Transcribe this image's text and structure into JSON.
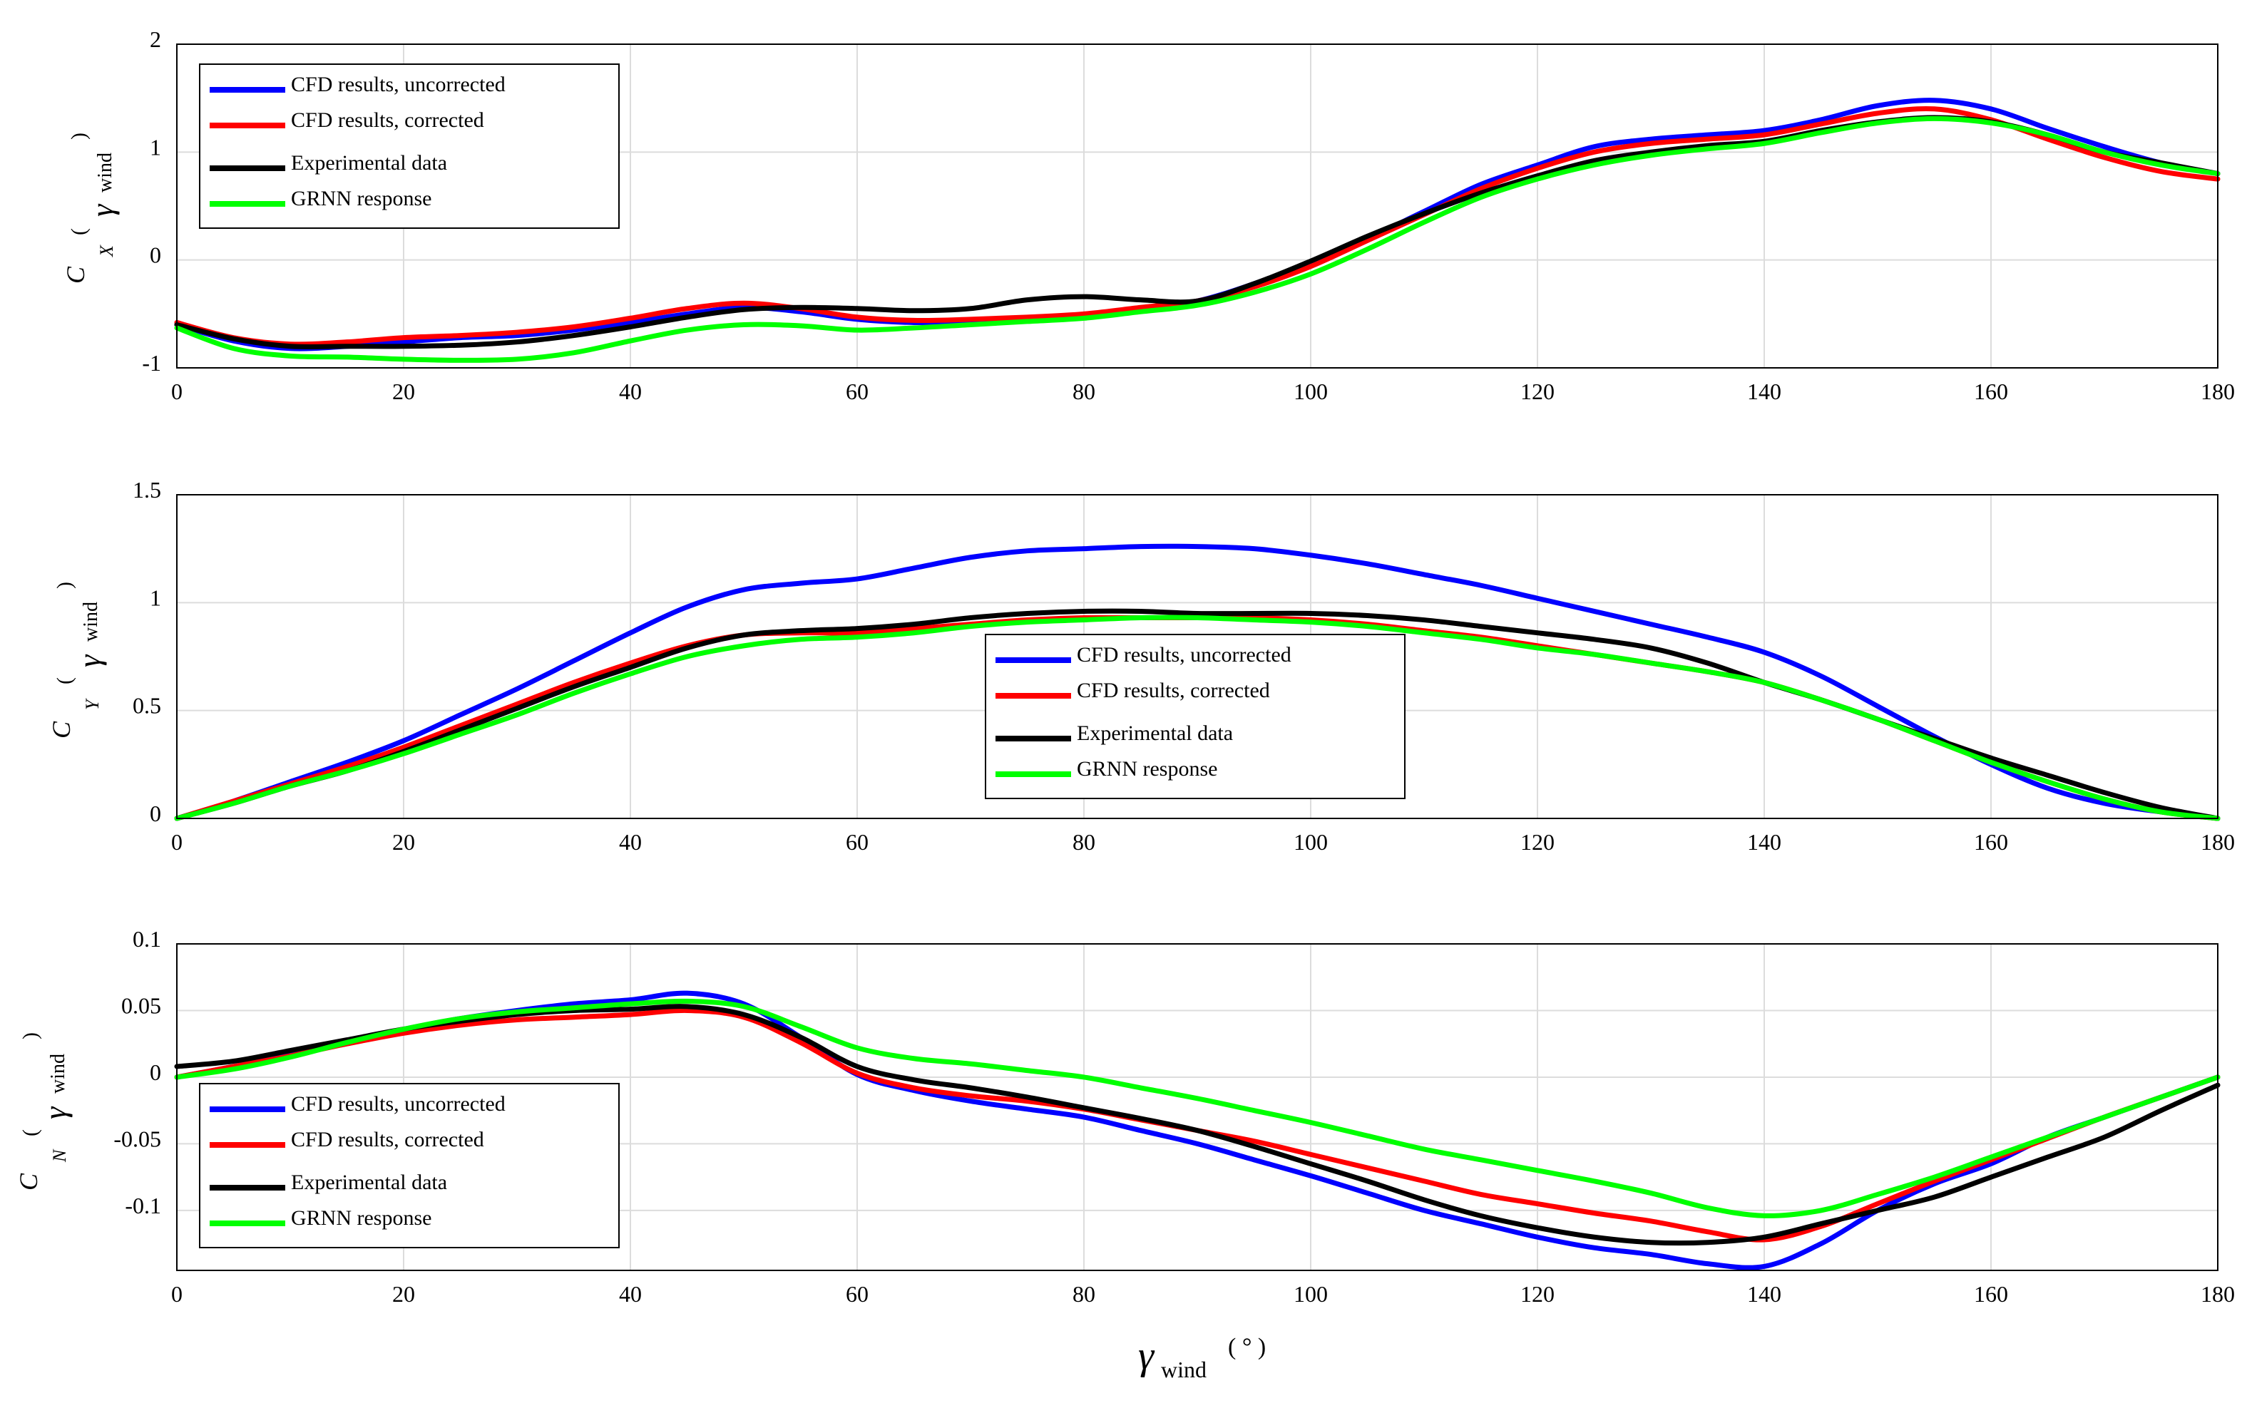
{
  "chart_data": [
    {
      "type": "line",
      "ylabel_main": "C",
      "ylabel_sub": "X",
      "ylim": [
        -1,
        2
      ],
      "yticks": [
        "-1",
        "0",
        "1",
        "2"
      ],
      "xlim": [
        0,
        180
      ],
      "xticks": [
        "0",
        "20",
        "40",
        "60",
        "80",
        "100",
        "120",
        "140",
        "160",
        "180"
      ],
      "grid": true,
      "legend_position": "top-left",
      "series": [
        {
          "name": "CFD results, uncorrected",
          "color": "#0000ff",
          "x": [
            0,
            5,
            10,
            15,
            20,
            25,
            30,
            35,
            40,
            45,
            50,
            55,
            60,
            65,
            70,
            75,
            80,
            85,
            90,
            95,
            100,
            105,
            110,
            115,
            120,
            125,
            130,
            135,
            140,
            145,
            150,
            155,
            160,
            165,
            170,
            175,
            180
          ],
          "y": [
            -0.6,
            -0.75,
            -0.82,
            -0.8,
            -0.76,
            -0.72,
            -0.7,
            -0.65,
            -0.58,
            -0.5,
            -0.44,
            -0.48,
            -0.55,
            -0.58,
            -0.57,
            -0.55,
            -0.52,
            -0.45,
            -0.38,
            -0.22,
            -0.02,
            0.2,
            0.45,
            0.7,
            0.88,
            1.05,
            1.12,
            1.16,
            1.2,
            1.3,
            1.43,
            1.48,
            1.4,
            1.22,
            1.05,
            0.9,
            0.8
          ]
        },
        {
          "name": "CFD results, corrected",
          "color": "#ff0000",
          "x": [
            0,
            5,
            10,
            15,
            20,
            25,
            30,
            35,
            40,
            45,
            50,
            55,
            60,
            65,
            70,
            75,
            80,
            85,
            90,
            95,
            100,
            105,
            110,
            115,
            120,
            125,
            130,
            135,
            140,
            145,
            150,
            155,
            160,
            165,
            170,
            175,
            180
          ],
          "y": [
            -0.58,
            -0.72,
            -0.78,
            -0.76,
            -0.72,
            -0.7,
            -0.67,
            -0.62,
            -0.54,
            -0.45,
            -0.4,
            -0.45,
            -0.53,
            -0.56,
            -0.55,
            -0.53,
            -0.5,
            -0.44,
            -0.38,
            -0.25,
            -0.06,
            0.18,
            0.42,
            0.66,
            0.85,
            1.0,
            1.08,
            1.12,
            1.16,
            1.26,
            1.36,
            1.4,
            1.3,
            1.12,
            0.95,
            0.82,
            0.75
          ]
        },
        {
          "name": "Experimental data",
          "color": "#000000",
          "x": [
            0,
            5,
            10,
            15,
            20,
            25,
            30,
            35,
            40,
            45,
            50,
            55,
            60,
            65,
            70,
            75,
            80,
            85,
            90,
            95,
            100,
            105,
            110,
            115,
            120,
            125,
            130,
            135,
            140,
            145,
            150,
            155,
            160,
            165,
            170,
            175,
            180
          ],
          "y": [
            -0.6,
            -0.73,
            -0.8,
            -0.8,
            -0.8,
            -0.79,
            -0.76,
            -0.7,
            -0.62,
            -0.53,
            -0.46,
            -0.44,
            -0.45,
            -0.47,
            -0.45,
            -0.37,
            -0.34,
            -0.37,
            -0.38,
            -0.22,
            -0.01,
            0.22,
            0.43,
            0.62,
            0.78,
            0.92,
            1.0,
            1.06,
            1.1,
            1.2,
            1.28,
            1.32,
            1.28,
            1.16,
            1.0,
            0.9,
            0.8
          ]
        },
        {
          "name": "GRNN response",
          "color": "#00ff00",
          "x": [
            0,
            5,
            10,
            15,
            20,
            25,
            30,
            35,
            40,
            45,
            50,
            55,
            60,
            65,
            70,
            75,
            80,
            85,
            90,
            95,
            100,
            105,
            110,
            115,
            120,
            125,
            130,
            135,
            140,
            145,
            150,
            155,
            160,
            165,
            170,
            175,
            180
          ],
          "y": [
            -0.63,
            -0.82,
            -0.89,
            -0.9,
            -0.92,
            -0.93,
            -0.92,
            -0.86,
            -0.75,
            -0.65,
            -0.6,
            -0.61,
            -0.65,
            -0.63,
            -0.6,
            -0.57,
            -0.54,
            -0.48,
            -0.42,
            -0.3,
            -0.13,
            0.1,
            0.35,
            0.58,
            0.75,
            0.88,
            0.97,
            1.03,
            1.08,
            1.18,
            1.27,
            1.31,
            1.27,
            1.16,
            1.0,
            0.88,
            0.8
          ]
        }
      ]
    },
    {
      "type": "line",
      "ylabel_main": "C",
      "ylabel_sub": "Y",
      "ylim": [
        0,
        1.5
      ],
      "yticks": [
        "0",
        "0.5",
        "1",
        "1.5"
      ],
      "xlim": [
        0,
        180
      ],
      "xticks": [
        "0",
        "20",
        "40",
        "60",
        "80",
        "100",
        "120",
        "140",
        "160",
        "180"
      ],
      "grid": true,
      "legend_position": "center-right",
      "series": [
        {
          "name": "CFD results, uncorrected",
          "color": "#0000ff",
          "x": [
            0,
            5,
            10,
            15,
            20,
            25,
            30,
            35,
            40,
            45,
            50,
            55,
            60,
            65,
            70,
            75,
            80,
            85,
            90,
            95,
            100,
            105,
            110,
            115,
            120,
            125,
            130,
            135,
            140,
            145,
            150,
            155,
            160,
            165,
            170,
            175,
            180
          ],
          "y": [
            0,
            0.08,
            0.17,
            0.26,
            0.36,
            0.48,
            0.6,
            0.73,
            0.86,
            0.98,
            1.06,
            1.09,
            1.11,
            1.16,
            1.21,
            1.24,
            1.25,
            1.26,
            1.26,
            1.25,
            1.22,
            1.18,
            1.13,
            1.08,
            1.02,
            0.96,
            0.9,
            0.84,
            0.77,
            0.66,
            0.52,
            0.38,
            0.25,
            0.14,
            0.07,
            0.03,
            0
          ]
        },
        {
          "name": "CFD results, corrected",
          "color": "#ff0000",
          "x": [
            0,
            5,
            10,
            15,
            20,
            25,
            30,
            35,
            40,
            45,
            50,
            55,
            60,
            65,
            70,
            75,
            80,
            85,
            90,
            95,
            100,
            105,
            110,
            115,
            120,
            125,
            130,
            135,
            140,
            145,
            150,
            155,
            160,
            165,
            170,
            175,
            180
          ],
          "y": [
            0,
            0.08,
            0.16,
            0.24,
            0.33,
            0.43,
            0.53,
            0.63,
            0.72,
            0.8,
            0.85,
            0.86,
            0.86,
            0.88,
            0.9,
            0.92,
            0.93,
            0.93,
            0.93,
            0.93,
            0.92,
            0.9,
            0.87,
            0.84,
            0.8,
            0.76,
            0.72,
            0.68,
            0.63,
            0.55,
            0.46,
            0.36,
            0.26,
            0.17,
            0.09,
            0.03,
            0
          ]
        },
        {
          "name": "Experimental data",
          "color": "#000000",
          "x": [
            0,
            5,
            10,
            15,
            20,
            25,
            30,
            35,
            40,
            45,
            50,
            55,
            60,
            65,
            70,
            75,
            80,
            85,
            90,
            95,
            100,
            105,
            110,
            115,
            120,
            125,
            130,
            135,
            140,
            145,
            150,
            155,
            160,
            165,
            170,
            175,
            180
          ],
          "y": [
            0,
            0.07,
            0.15,
            0.22,
            0.31,
            0.41,
            0.51,
            0.61,
            0.7,
            0.79,
            0.85,
            0.87,
            0.88,
            0.9,
            0.93,
            0.95,
            0.96,
            0.96,
            0.95,
            0.95,
            0.95,
            0.94,
            0.92,
            0.89,
            0.86,
            0.83,
            0.79,
            0.72,
            0.63,
            0.55,
            0.46,
            0.37,
            0.28,
            0.2,
            0.12,
            0.05,
            0
          ]
        },
        {
          "name": "GRNN response",
          "color": "#00ff00",
          "x": [
            0,
            5,
            10,
            15,
            20,
            25,
            30,
            35,
            40,
            45,
            50,
            55,
            60,
            65,
            70,
            75,
            80,
            85,
            90,
            95,
            100,
            105,
            110,
            115,
            120,
            125,
            130,
            135,
            140,
            145,
            150,
            155,
            160,
            165,
            170,
            175,
            180
          ],
          "y": [
            0,
            0.07,
            0.15,
            0.22,
            0.3,
            0.39,
            0.48,
            0.58,
            0.67,
            0.75,
            0.8,
            0.83,
            0.84,
            0.86,
            0.89,
            0.91,
            0.92,
            0.93,
            0.93,
            0.92,
            0.91,
            0.89,
            0.86,
            0.83,
            0.79,
            0.76,
            0.72,
            0.68,
            0.63,
            0.55,
            0.46,
            0.36,
            0.26,
            0.17,
            0.09,
            0.03,
            0
          ]
        }
      ]
    },
    {
      "type": "line",
      "ylabel_main": "C",
      "ylabel_sub": "N",
      "ylim": [
        -0.145,
        0.1
      ],
      "yticks": [
        "-0.1",
        "-0.05",
        "0",
        "0.05",
        "0.1"
      ],
      "ytick_values": [
        -0.1,
        -0.05,
        0,
        0.05,
        0.1
      ],
      "xlim": [
        0,
        180
      ],
      "xticks": [
        "0",
        "20",
        "40",
        "60",
        "80",
        "100",
        "120",
        "140",
        "160",
        "180"
      ],
      "grid": true,
      "legend_position": "bottom-left",
      "series": [
        {
          "name": "CFD results, uncorrected",
          "color": "#0000ff",
          "x": [
            0,
            5,
            10,
            15,
            20,
            25,
            30,
            35,
            40,
            45,
            50,
            55,
            60,
            65,
            70,
            75,
            80,
            85,
            90,
            95,
            100,
            105,
            110,
            115,
            120,
            125,
            130,
            135,
            140,
            145,
            150,
            155,
            160,
            165,
            170,
            175,
            180
          ],
          "y": [
            0,
            0.008,
            0.017,
            0.027,
            0.036,
            0.044,
            0.05,
            0.055,
            0.058,
            0.063,
            0.055,
            0.03,
            0.002,
            -0.01,
            -0.018,
            -0.024,
            -0.03,
            -0.04,
            -0.05,
            -0.062,
            -0.074,
            -0.087,
            -0.1,
            -0.11,
            -0.12,
            -0.128,
            -0.133,
            -0.14,
            -0.142,
            -0.125,
            -0.1,
            -0.08,
            -0.065,
            -0.045,
            -0.03,
            -0.015,
            0
          ]
        },
        {
          "name": "CFD results, corrected",
          "color": "#ff0000",
          "x": [
            0,
            5,
            10,
            15,
            20,
            25,
            30,
            35,
            40,
            45,
            50,
            55,
            60,
            65,
            70,
            75,
            80,
            85,
            90,
            95,
            100,
            105,
            110,
            115,
            120,
            125,
            130,
            135,
            140,
            145,
            150,
            155,
            160,
            165,
            170,
            175,
            180
          ],
          "y": [
            0,
            0.008,
            0.016,
            0.025,
            0.033,
            0.039,
            0.043,
            0.045,
            0.047,
            0.05,
            0.045,
            0.026,
            0.003,
            -0.008,
            -0.014,
            -0.018,
            -0.024,
            -0.032,
            -0.04,
            -0.048,
            -0.058,
            -0.068,
            -0.078,
            -0.088,
            -0.095,
            -0.102,
            -0.108,
            -0.116,
            -0.122,
            -0.112,
            -0.095,
            -0.078,
            -0.062,
            -0.046,
            -0.03,
            -0.015,
            0
          ]
        },
        {
          "name": "Experimental data",
          "color": "#000000",
          "x": [
            0,
            5,
            10,
            15,
            20,
            25,
            30,
            35,
            40,
            45,
            50,
            55,
            60,
            65,
            70,
            75,
            80,
            85,
            90,
            95,
            100,
            105,
            110,
            115,
            120,
            125,
            130,
            135,
            140,
            145,
            150,
            155,
            160,
            165,
            170,
            175,
            180
          ],
          "y": [
            0.008,
            0.012,
            0.02,
            0.028,
            0.036,
            0.042,
            0.047,
            0.05,
            0.051,
            0.053,
            0.047,
            0.03,
            0.008,
            -0.002,
            -0.008,
            -0.015,
            -0.023,
            -0.031,
            -0.04,
            -0.052,
            -0.065,
            -0.078,
            -0.092,
            -0.104,
            -0.113,
            -0.12,
            -0.124,
            -0.124,
            -0.12,
            -0.11,
            -0.1,
            -0.09,
            -0.075,
            -0.06,
            -0.045,
            -0.025,
            -0.006
          ]
        },
        {
          "name": "GRNN response",
          "color": "#00ff00",
          "x": [
            0,
            5,
            10,
            15,
            20,
            25,
            30,
            35,
            40,
            45,
            50,
            55,
            60,
            65,
            70,
            75,
            80,
            85,
            90,
            95,
            100,
            105,
            110,
            115,
            120,
            125,
            130,
            135,
            140,
            145,
            150,
            155,
            160,
            165,
            170,
            175,
            180
          ],
          "y": [
            0,
            0.006,
            0.015,
            0.026,
            0.036,
            0.044,
            0.049,
            0.052,
            0.055,
            0.057,
            0.053,
            0.038,
            0.022,
            0.014,
            0.01,
            0.005,
            0,
            -0.008,
            -0.016,
            -0.025,
            -0.034,
            -0.044,
            -0.054,
            -0.062,
            -0.07,
            -0.078,
            -0.087,
            -0.098,
            -0.104,
            -0.1,
            -0.088,
            -0.075,
            -0.06,
            -0.045,
            -0.03,
            -0.015,
            0
          ]
        }
      ]
    }
  ],
  "shared": {
    "ylabel_paren_open": "(",
    "ylabel_paren_close": ")",
    "ylabel_gamma": "γ",
    "ylabel_wind": "wind",
    "xlabel_gamma": "γ",
    "xlabel_wind": "wind",
    "xlabel_unit": "( ° )"
  }
}
